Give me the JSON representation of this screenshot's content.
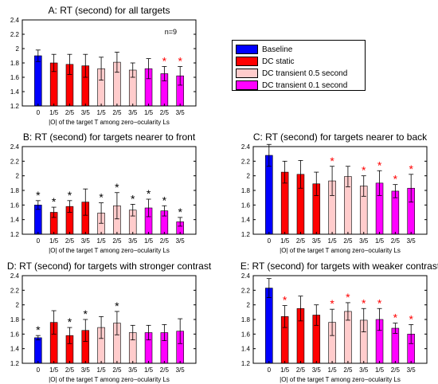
{
  "legend": {
    "items": [
      {
        "label": "Baseline",
        "color": "#0000ff"
      },
      {
        "label": "DC static",
        "color": "#ff0000"
      },
      {
        "label": "DC transient 0.5 second",
        "color": "#ffcccc"
      },
      {
        "label": "DC transient 0.1 second",
        "color": "#ff00ff"
      }
    ]
  },
  "chart_data": [
    {
      "type": "bar",
      "title": "A: RT (second) for all targets",
      "xlabel": "|O| of the target T among zero−ocularity Ls",
      "annotation": "n=9",
      "categories": [
        "0",
        "1/5",
        "2/5",
        "3/5",
        "1/5",
        "2/5",
        "3/5",
        "1/5",
        "2/5",
        "3/5"
      ],
      "groups": [
        "Baseline",
        "DC static",
        "DC static",
        "DC static",
        "DC transient 0.5 second",
        "DC transient 0.5 second",
        "DC transient 0.5 second",
        "DC transient 0.1 second",
        "DC transient 0.1 second",
        "DC transient 0.1 second"
      ],
      "values": [
        1.9,
        1.8,
        1.78,
        1.76,
        1.72,
        1.81,
        1.7,
        1.72,
        1.65,
        1.62
      ],
      "errors": [
        0.08,
        0.12,
        0.14,
        0.16,
        0.16,
        0.14,
        0.1,
        0.14,
        0.1,
        0.13
      ],
      "significance": [
        "",
        "",
        "",
        "",
        "",
        "",
        "",
        "",
        "red",
        "red"
      ],
      "ylim": [
        1.2,
        2.4
      ],
      "yticks": [
        "1.2",
        "1.4",
        "1.6",
        "1.8",
        "2",
        "2.2",
        "2.4"
      ]
    },
    {
      "type": "bar",
      "title": "B: RT (second) for targets nearer to front",
      "xlabel": "|O| of the target T among zero−ocularity Ls",
      "categories": [
        "0",
        "1/5",
        "2/5",
        "3/5",
        "1/5",
        "2/5",
        "3/5",
        "1/5",
        "2/5",
        "3/5"
      ],
      "values": [
        1.6,
        1.5,
        1.58,
        1.64,
        1.49,
        1.59,
        1.53,
        1.56,
        1.52,
        1.37
      ],
      "errors": [
        0.06,
        0.07,
        0.08,
        0.18,
        0.14,
        0.18,
        0.08,
        0.12,
        0.07,
        0.06
      ],
      "significance": [
        "black",
        "black",
        "black",
        "",
        "black",
        "black",
        "black",
        "black",
        "black",
        "black"
      ],
      "ylim": [
        1.2,
        2.4
      ],
      "yticks": [
        "1.2",
        "1.4",
        "1.6",
        "1.8",
        "2",
        "2.2",
        "2.4"
      ]
    },
    {
      "type": "bar",
      "title": "C: RT (second) for targets nearer to back",
      "xlabel": "|O| of the target T among zero−ocularity Ls",
      "categories": [
        "0",
        "1/5",
        "2/5",
        "3/5",
        "1/5",
        "2/5",
        "3/5",
        "1/5",
        "2/5",
        "3/5"
      ],
      "values": [
        2.28,
        2.05,
        2.02,
        1.89,
        1.93,
        1.99,
        1.86,
        1.9,
        1.79,
        1.83
      ],
      "errors": [
        0.15,
        0.15,
        0.19,
        0.16,
        0.2,
        0.14,
        0.14,
        0.17,
        0.09,
        0.19
      ],
      "significance": [
        "",
        "",
        "",
        "",
        "red",
        "",
        "red",
        "red",
        "red",
        "red"
      ],
      "ylim": [
        1.2,
        2.4
      ],
      "yticks": [
        "1.2",
        "1.4",
        "1.6",
        "1.8",
        "2",
        "2.2",
        "2.4"
      ]
    },
    {
      "type": "bar",
      "title": "D: RT (second) for targets with stronger contrast",
      "xlabel": "|O| of the target T among zero−ocularity Ls",
      "categories": [
        "0",
        "1/5",
        "2/5",
        "3/5",
        "1/5",
        "2/5",
        "3/5",
        "1/5",
        "2/5",
        "3/5"
      ],
      "values": [
        1.55,
        1.76,
        1.58,
        1.65,
        1.69,
        1.75,
        1.62,
        1.62,
        1.62,
        1.64
      ],
      "errors": [
        0.03,
        0.16,
        0.11,
        0.15,
        0.15,
        0.16,
        0.1,
        0.1,
        0.11,
        0.17
      ],
      "significance": [
        "black",
        "",
        "black",
        "black",
        "",
        "black",
        "",
        "",
        "",
        ""
      ],
      "ylim": [
        1.2,
        2.4
      ],
      "yticks": [
        "1.2",
        "1.4",
        "1.6",
        "1.8",
        "2",
        "2.2",
        "2.4"
      ]
    },
    {
      "type": "bar",
      "title": "E: RT (second) for targets with weaker contrast",
      "xlabel": "|O| of the target T among zero−ocularity Ls",
      "categories": [
        "0",
        "1/5",
        "2/5",
        "3/5",
        "1/5",
        "2/5",
        "3/5",
        "1/5",
        "2/5",
        "3/5"
      ],
      "values": [
        2.23,
        1.84,
        1.95,
        1.86,
        1.76,
        1.91,
        1.79,
        1.8,
        1.68,
        1.6
      ],
      "errors": [
        0.13,
        0.15,
        0.17,
        0.14,
        0.18,
        0.12,
        0.16,
        0.15,
        0.07,
        0.13
      ],
      "significance": [
        "",
        "red",
        "",
        "",
        "red",
        "red",
        "red",
        "red",
        "red",
        "red"
      ],
      "ylim": [
        1.2,
        2.4
      ],
      "yticks": [
        "1.2",
        "1.4",
        "1.6",
        "1.8",
        "2",
        "2.2",
        "2.4"
      ]
    }
  ]
}
